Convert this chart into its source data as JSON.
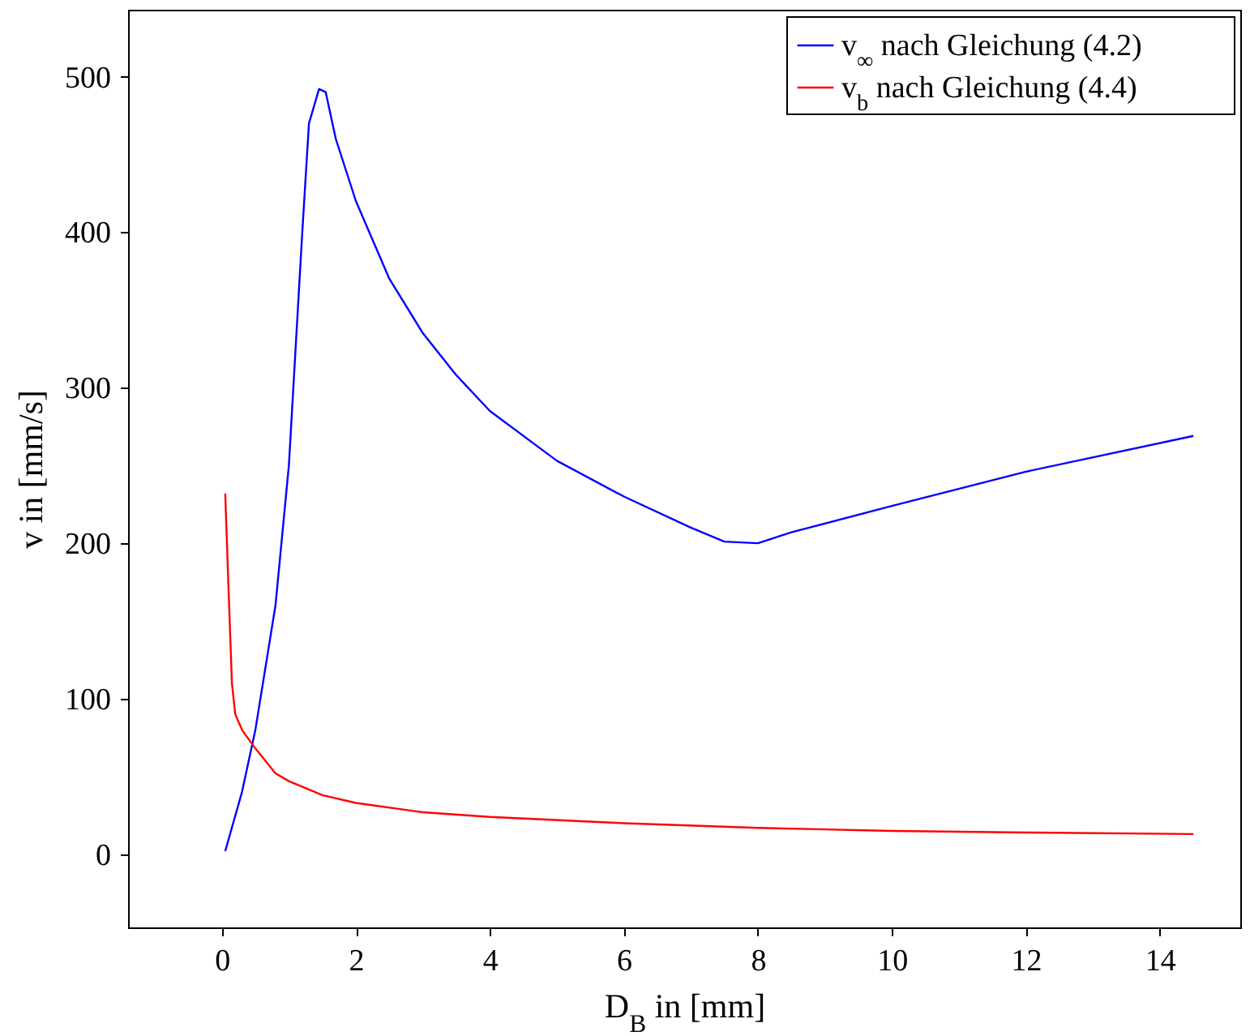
{
  "chart_data": {
    "type": "line",
    "xlabel": "D$_{B}$ in [mm]",
    "ylabel": "v in [mm/s]",
    "xlim": [
      -1.4,
      15.2
    ],
    "ylim": [
      -47,
      543
    ],
    "xticks": [
      0,
      2,
      4,
      6,
      8,
      10,
      12,
      14
    ],
    "yticks": [
      0,
      100,
      200,
      300,
      400,
      500
    ],
    "grid": false,
    "legend": "top right",
    "line_style": "solid",
    "marker": "none",
    "series": [
      {
        "name": "v$_{∞}$ nach Gleichung (4.2)",
        "color": "#0000ff",
        "x": [
          0.05,
          0.3,
          0.5,
          0.8,
          1.0,
          1.2,
          1.3,
          1.45,
          1.55,
          1.7,
          2,
          2.5,
          3,
          3.5,
          4,
          5,
          6,
          7,
          7.5,
          8,
          8.5,
          10,
          12,
          14.5
        ],
        "values": [
          2,
          40,
          80,
          160,
          250,
          400,
          470,
          492,
          490,
          460,
          420,
          370,
          335,
          308,
          285,
          253,
          230,
          210,
          201,
          200,
          207,
          224,
          246,
          269
        ]
      },
      {
        "name": "v$_{b}$ nach Gleichung (4.4)",
        "color": "#ff0000",
        "x": [
          0.05,
          0.1,
          0.15,
          0.2,
          0.3,
          0.5,
          0.8,
          1,
          1.5,
          2,
          3,
          4,
          6,
          8,
          10,
          12,
          14.5
        ],
        "values": [
          232,
          170,
          110,
          90,
          80,
          68,
          52,
          47,
          38,
          33,
          27,
          24,
          20,
          17,
          15,
          14,
          13
        ]
      }
    ]
  }
}
